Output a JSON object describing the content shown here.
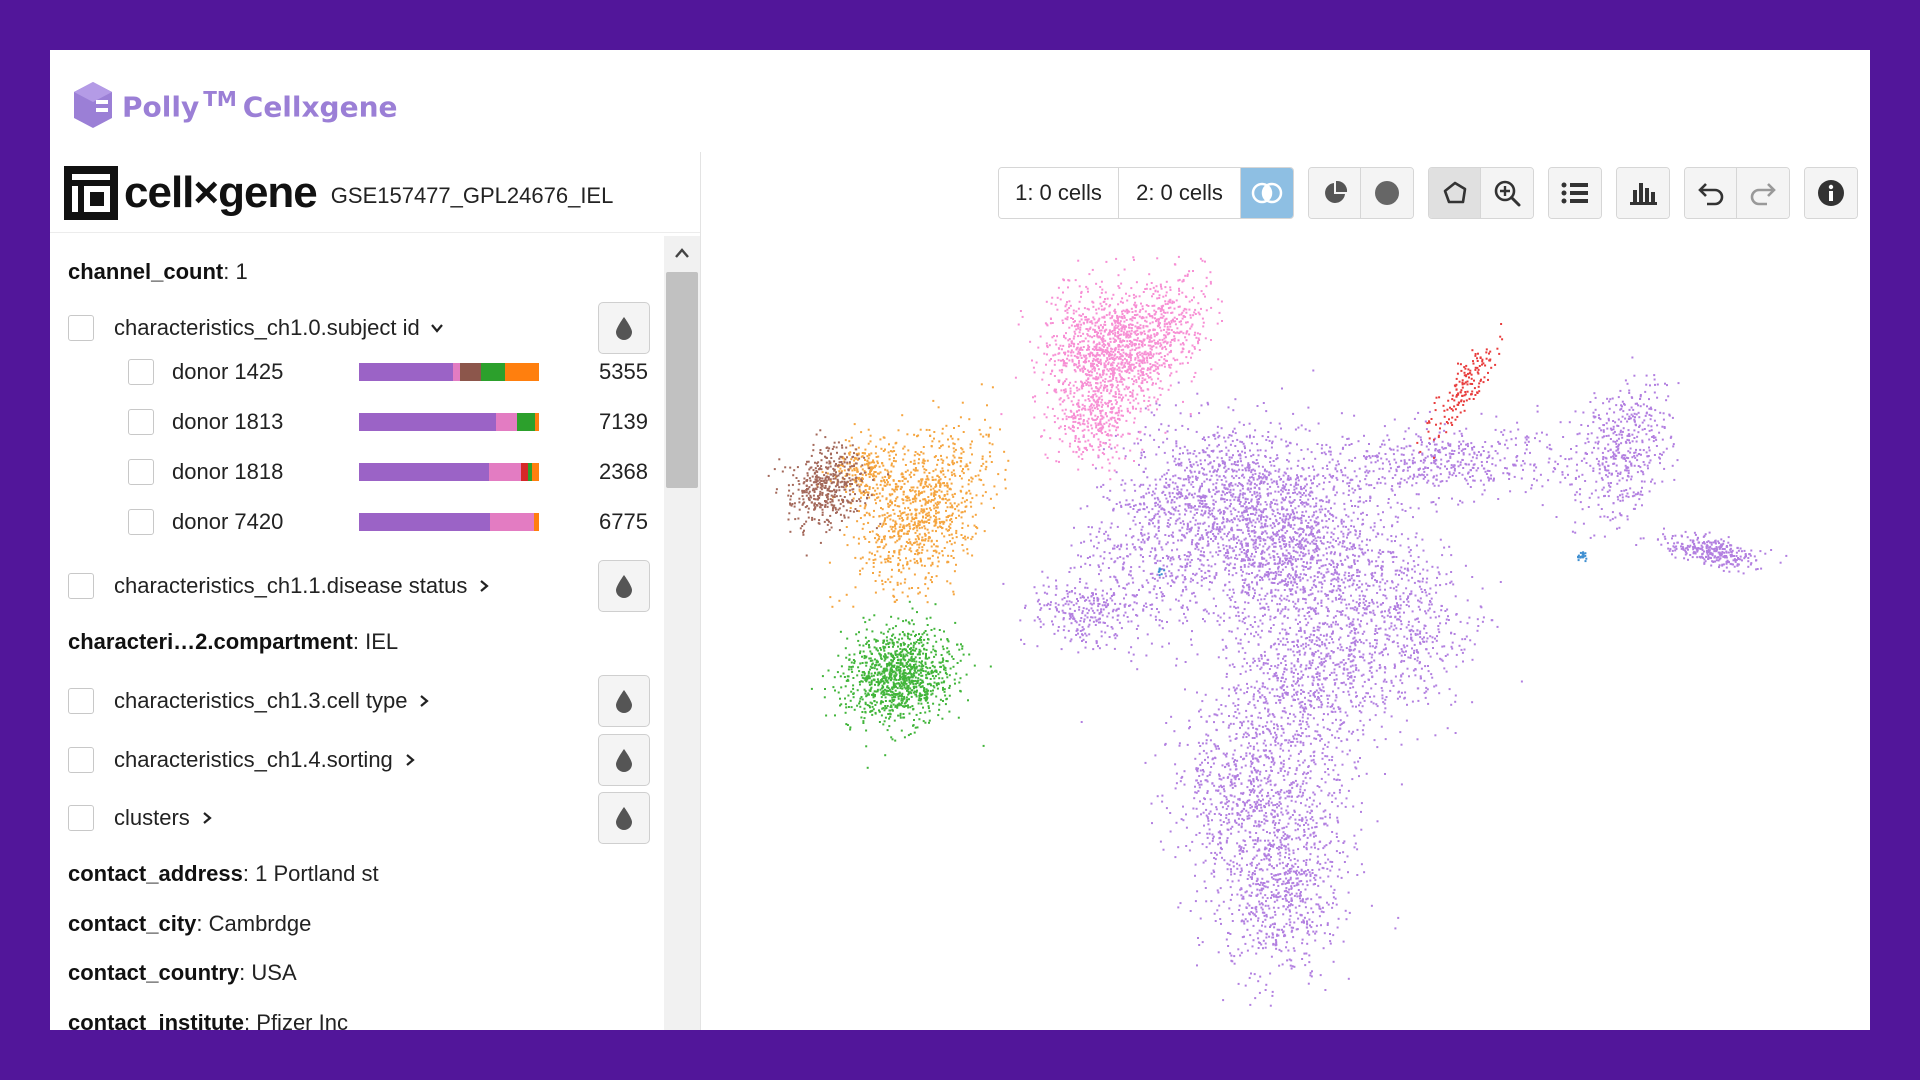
{
  "brand": {
    "name": "Polly",
    "tm": "TM",
    "product": "Cellxgene"
  },
  "header": {
    "logo_word": "cell×gene",
    "dataset": "GSE157477_GPL24676_IEL"
  },
  "metadata": {
    "channel_count": {
      "key": "channel_count",
      "value": "1"
    },
    "compartment": {
      "key": "characteri…2.compartment",
      "value": "IEL"
    },
    "contact_address": {
      "key": "contact_address",
      "value": "1 Portland st"
    },
    "contact_city": {
      "key": "contact_city",
      "value": "Cambrdge"
    },
    "contact_country": {
      "key": "contact_country",
      "value": "USA"
    },
    "contact_institute": {
      "key": "contact_institute",
      "value": "Pfizer Inc"
    }
  },
  "fields": {
    "subject_id": "characteristics_ch1.0.subject id",
    "disease_status": "characteristics_ch1.1.disease status",
    "cell_type": "characteristics_ch1.3.cell type",
    "sorting": "characteristics_ch1.4.sorting",
    "clusters": "clusters"
  },
  "categories": [
    {
      "label": "donor 1425",
      "count": "5355",
      "segments": [
        {
          "color": "#9b63c6",
          "frac": 0.52
        },
        {
          "color": "#e37cc2",
          "frac": 0.04
        },
        {
          "color": "#8c564b",
          "frac": 0.12
        },
        {
          "color": "#2ca02c",
          "frac": 0.13
        },
        {
          "color": "#ff7f0e",
          "frac": 0.19
        }
      ]
    },
    {
      "label": "donor 1813",
      "count": "7139",
      "segments": [
        {
          "color": "#9b63c6",
          "frac": 0.76
        },
        {
          "color": "#e37cc2",
          "frac": 0.12
        },
        {
          "color": "#2ca02c",
          "frac": 0.1
        },
        {
          "color": "#ff7f0e",
          "frac": 0.02
        }
      ]
    },
    {
      "label": "donor 1818",
      "count": "2368",
      "segments": [
        {
          "color": "#9b63c6",
          "frac": 0.72
        },
        {
          "color": "#e37cc2",
          "frac": 0.18
        },
        {
          "color": "#d62728",
          "frac": 0.04
        },
        {
          "color": "#2ca02c",
          "frac": 0.02
        },
        {
          "color": "#ff7f0e",
          "frac": 0.04
        }
      ]
    },
    {
      "label": "donor 7420",
      "count": "6775",
      "segments": [
        {
          "color": "#9b63c6",
          "frac": 0.73
        },
        {
          "color": "#e37cc2",
          "frac": 0.24
        },
        {
          "color": "#ff7f0e",
          "frac": 0.03
        }
      ]
    }
  ],
  "toolbar": {
    "selection1": "1: 0 cells",
    "selection2": "2: 0 cells",
    "icons": [
      "venn-icon",
      "pie-icon",
      "circle-icon",
      "lasso-icon",
      "zoom-in-icon",
      "list-icon",
      "bar-chart-icon",
      "undo-icon",
      "redo-icon",
      "info-icon"
    ]
  },
  "embedding_clusters": [
    {
      "name": "purple",
      "color": "#b27fe0"
    },
    {
      "name": "pink",
      "color": "#f78fd4"
    },
    {
      "name": "orange",
      "color": "#f5a53f"
    },
    {
      "name": "brown",
      "color": "#a3685a"
    },
    {
      "name": "green",
      "color": "#41b53a"
    },
    {
      "name": "red",
      "color": "#e83c3c"
    },
    {
      "name": "blue",
      "color": "#3f8fd1"
    }
  ]
}
